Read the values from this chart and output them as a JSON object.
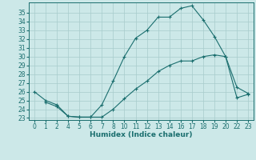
{
  "xlabel": "Humidex (Indice chaleur)",
  "background_color": "#cce8e8",
  "grid_color": "#a8cccc",
  "line_color": "#1a6e6e",
  "ylim_min": 22.8,
  "ylim_max": 36.2,
  "y_ticks": [
    23,
    24,
    25,
    26,
    27,
    28,
    29,
    30,
    31,
    32,
    33,
    34,
    35
  ],
  "x_labels": [
    "0",
    "1",
    "2",
    "4",
    "5",
    "6",
    "7",
    "8",
    "10",
    "11",
    "12",
    "13",
    "14",
    "16",
    "17",
    "18",
    "19",
    "20",
    "22",
    "23"
  ],
  "curve1_y": [
    26.0,
    25.0,
    24.5,
    23.2,
    23.1,
    23.1,
    24.5,
    27.2,
    30.0,
    32.1,
    33.0,
    34.5,
    34.5,
    35.5,
    35.8,
    34.2,
    32.3,
    30.0,
    26.5,
    25.8
  ],
  "curve2_y": [
    null,
    24.8,
    24.3,
    23.2,
    23.1,
    23.1,
    23.1,
    24.0,
    25.2,
    26.3,
    27.2,
    28.3,
    29.0,
    29.5,
    29.5,
    30.0,
    30.2,
    30.0,
    25.3,
    25.7
  ],
  "xlabel_fontsize": 6.5,
  "tick_fontsize": 5.5
}
